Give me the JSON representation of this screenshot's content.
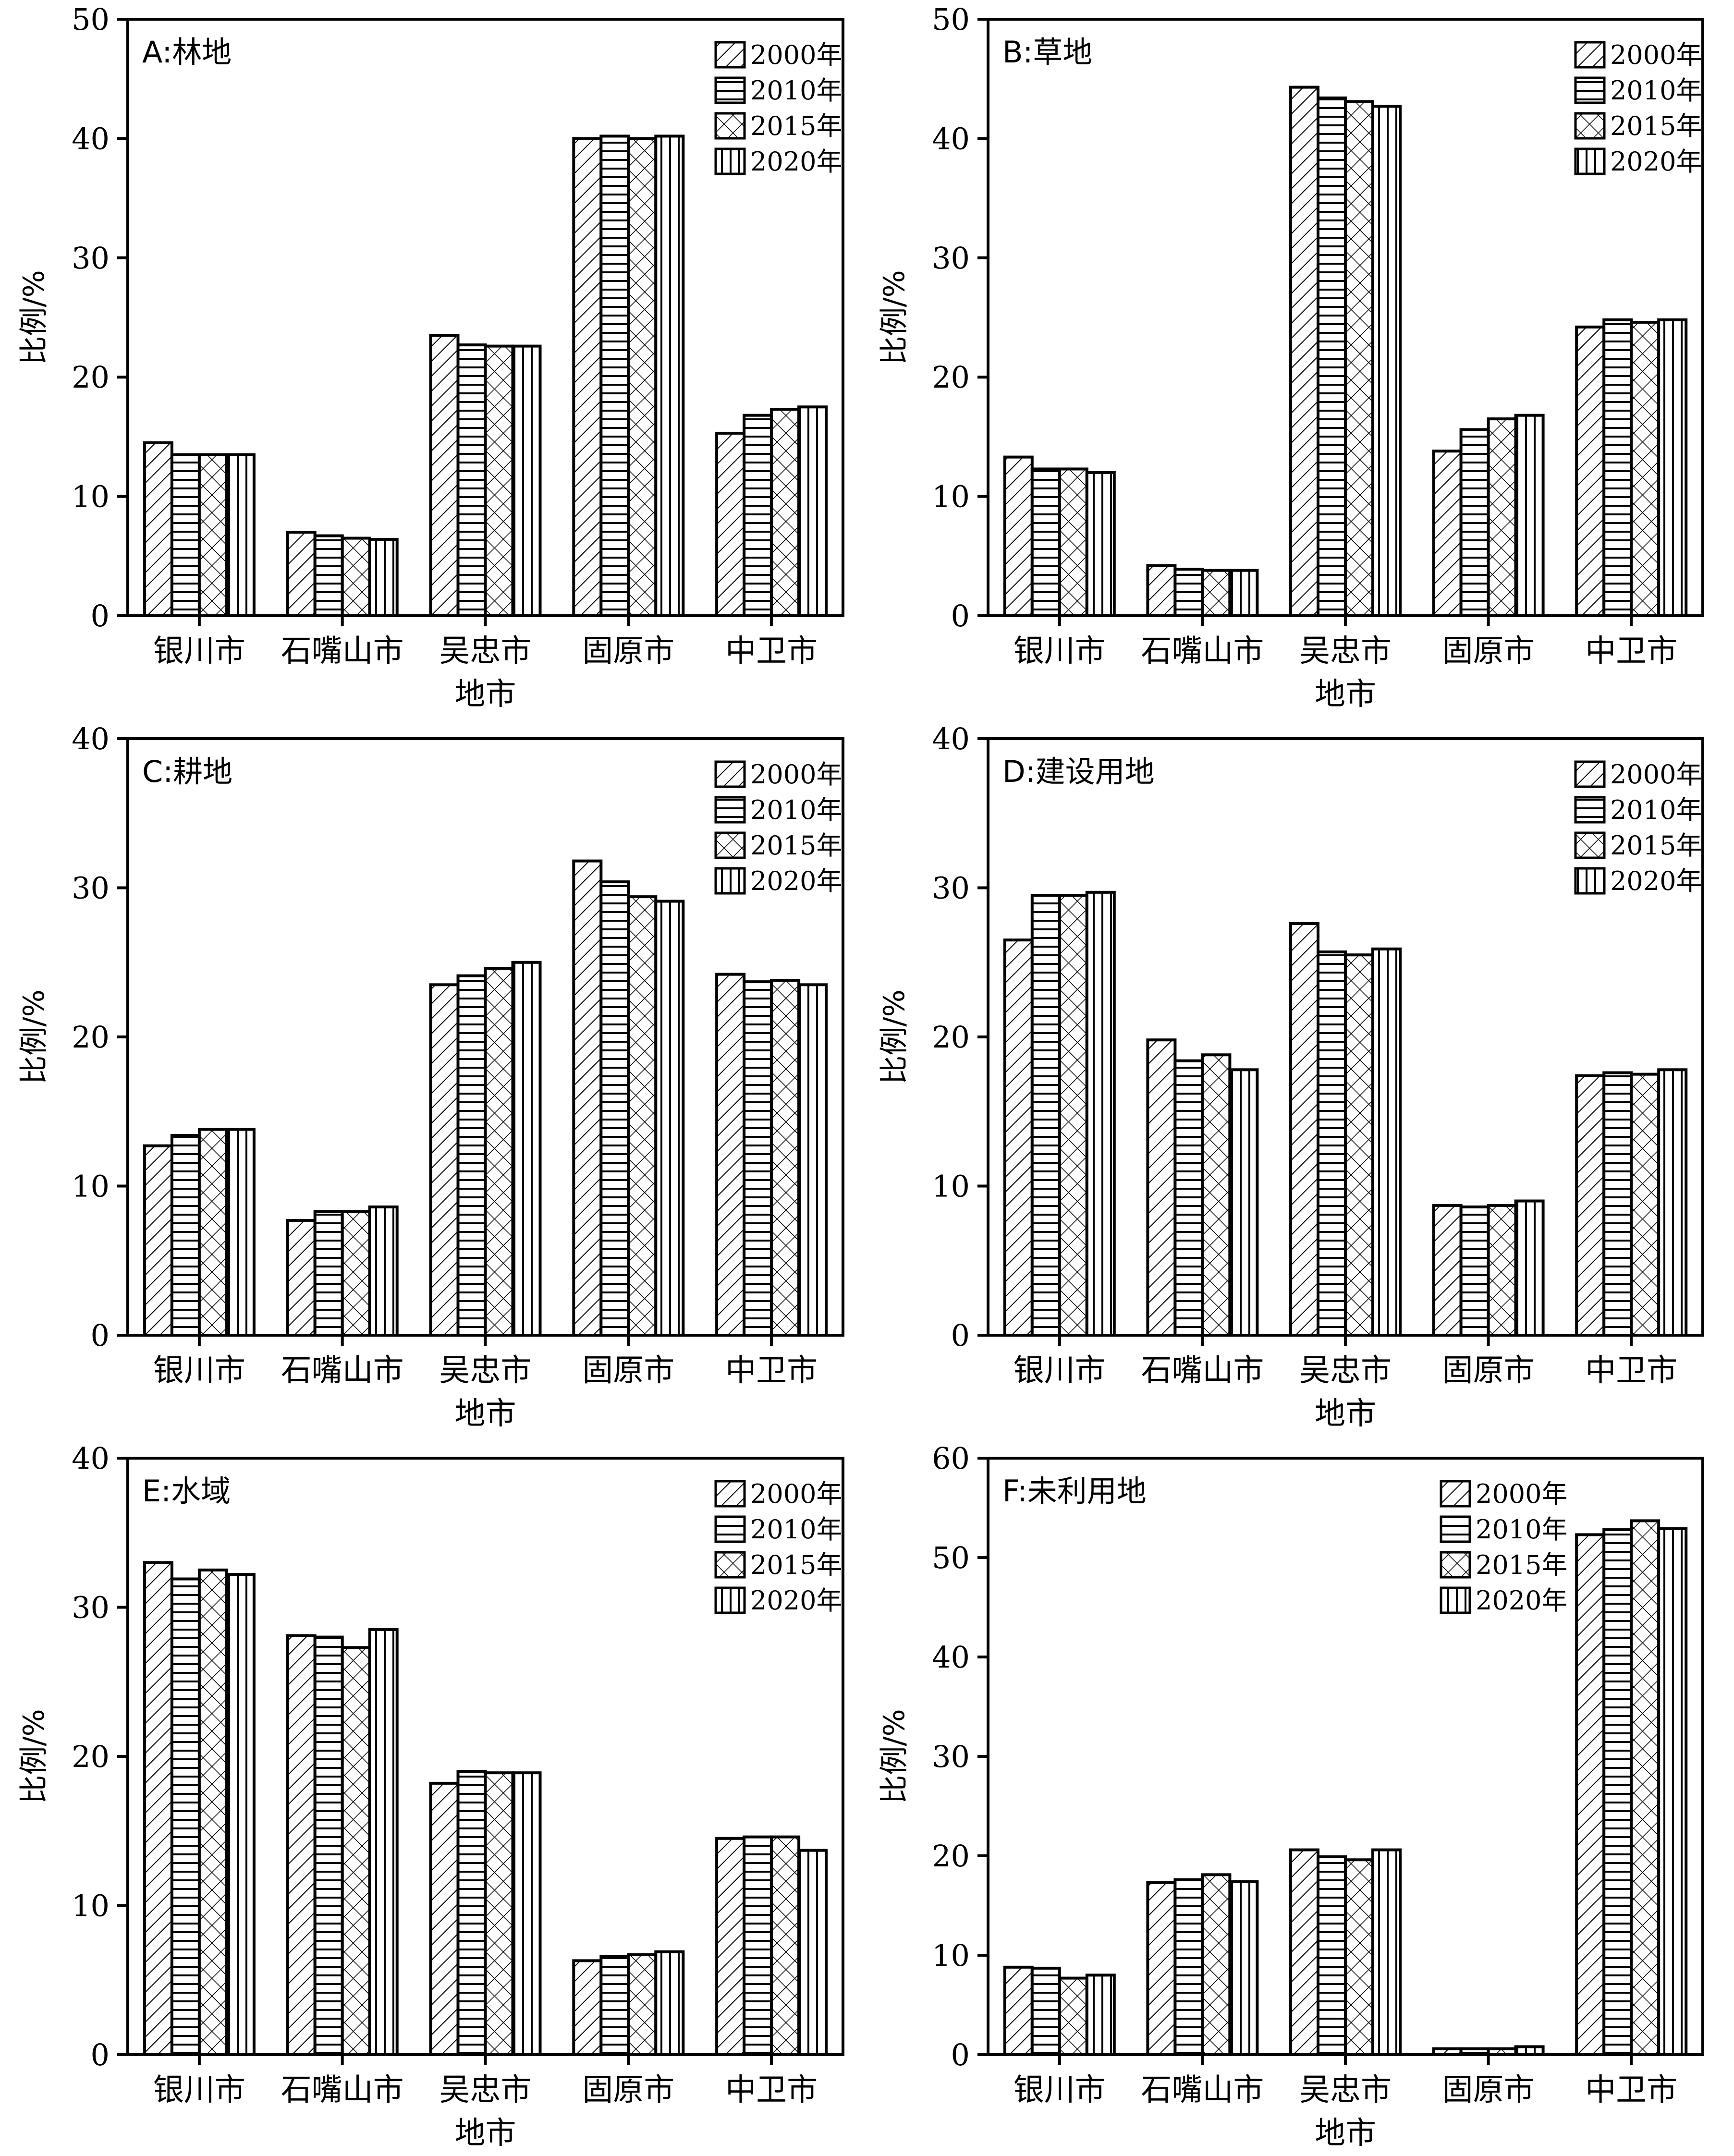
{
  "chart_data": [
    {
      "type": "bar",
      "title": "A:林地",
      "xlabel": "地市",
      "ylabel": "比例/%",
      "ylim": [
        0,
        50
      ],
      "yticks": [
        "0",
        "10",
        "20",
        "30",
        "40",
        "50"
      ],
      "categories": [
        "银川市",
        "石嘴山市",
        "吴忠市",
        "固原市",
        "中卫市"
      ],
      "legend_position": "top-right",
      "series": [
        {
          "name": "2000年",
          "pattern": "diagonal",
          "values": [
            14.5,
            7.0,
            23.5,
            40.0,
            15.3
          ]
        },
        {
          "name": "2010年",
          "pattern": "horizontal",
          "values": [
            13.5,
            6.7,
            22.7,
            40.2,
            16.8
          ]
        },
        {
          "name": "2015年",
          "pattern": "crosshatch",
          "values": [
            13.5,
            6.5,
            22.6,
            40.0,
            17.3
          ]
        },
        {
          "name": "2020年",
          "pattern": "vertical",
          "values": [
            13.5,
            6.4,
            22.6,
            40.2,
            17.5
          ]
        }
      ]
    },
    {
      "type": "bar",
      "title": "B:草地",
      "xlabel": "地市",
      "ylabel": "比例/%",
      "ylim": [
        0,
        50
      ],
      "yticks": [
        "0",
        "10",
        "20",
        "30",
        "40",
        "50"
      ],
      "categories": [
        "银川市",
        "石嘴山市",
        "吴忠市",
        "固原市",
        "中卫市"
      ],
      "legend_position": "top-right",
      "series": [
        {
          "name": "2000年",
          "pattern": "diagonal",
          "values": [
            13.3,
            4.2,
            44.3,
            13.8,
            24.2
          ]
        },
        {
          "name": "2010年",
          "pattern": "horizontal",
          "values": [
            12.3,
            3.9,
            43.4,
            15.6,
            24.8
          ]
        },
        {
          "name": "2015年",
          "pattern": "crosshatch",
          "values": [
            12.3,
            3.8,
            43.1,
            16.5,
            24.6
          ]
        },
        {
          "name": "2020年",
          "pattern": "vertical",
          "values": [
            12.0,
            3.8,
            42.7,
            16.8,
            24.8
          ]
        }
      ]
    },
    {
      "type": "bar",
      "title": "C:耕地",
      "xlabel": "地市",
      "ylabel": "比例/%",
      "ylim": [
        0,
        40
      ],
      "yticks": [
        "0",
        "10",
        "20",
        "30",
        "40"
      ],
      "categories": [
        "银川市",
        "石嘴山市",
        "吴忠市",
        "固原市",
        "中卫市"
      ],
      "legend_position": "top-right",
      "series": [
        {
          "name": "2000年",
          "pattern": "diagonal",
          "values": [
            12.7,
            7.7,
            23.5,
            31.8,
            24.2
          ]
        },
        {
          "name": "2010年",
          "pattern": "horizontal",
          "values": [
            13.4,
            8.3,
            24.1,
            30.4,
            23.7
          ]
        },
        {
          "name": "2015年",
          "pattern": "crosshatch",
          "values": [
            13.8,
            8.3,
            24.6,
            29.4,
            23.8
          ]
        },
        {
          "name": "2020年",
          "pattern": "vertical",
          "values": [
            13.8,
            8.6,
            25.0,
            29.1,
            23.5
          ]
        }
      ]
    },
    {
      "type": "bar",
      "title": "D:建设用地",
      "xlabel": "地市",
      "ylabel": "比例/%",
      "ylim": [
        0,
        40
      ],
      "yticks": [
        "0",
        "10",
        "20",
        "30",
        "40"
      ],
      "categories": [
        "银川市",
        "石嘴山市",
        "吴忠市",
        "固原市",
        "中卫市"
      ],
      "legend_position": "top-right",
      "series": [
        {
          "name": "2000年",
          "pattern": "diagonal",
          "values": [
            26.5,
            19.8,
            27.6,
            8.7,
            17.4
          ]
        },
        {
          "name": "2010年",
          "pattern": "horizontal",
          "values": [
            29.5,
            18.4,
            25.7,
            8.6,
            17.6
          ]
        },
        {
          "name": "2015年",
          "pattern": "crosshatch",
          "values": [
            29.5,
            18.8,
            25.5,
            8.7,
            17.5
          ]
        },
        {
          "name": "2020年",
          "pattern": "vertical",
          "values": [
            29.7,
            17.8,
            25.9,
            9.0,
            17.8
          ]
        }
      ]
    },
    {
      "type": "bar",
      "title": "E:水域",
      "xlabel": "地市",
      "ylabel": "比例/%",
      "ylim": [
        0,
        40
      ],
      "yticks": [
        "0",
        "10",
        "20",
        "30",
        "40"
      ],
      "categories": [
        "银川市",
        "石嘴山市",
        "吴忠市",
        "固原市",
        "中卫市"
      ],
      "legend_position": "top-right",
      "series": [
        {
          "name": "2000年",
          "pattern": "diagonal",
          "values": [
            33.0,
            28.1,
            18.2,
            6.3,
            14.5
          ]
        },
        {
          "name": "2010年",
          "pattern": "horizontal",
          "values": [
            31.9,
            28.0,
            19.0,
            6.6,
            14.6
          ]
        },
        {
          "name": "2015年",
          "pattern": "crosshatch",
          "values": [
            32.5,
            27.3,
            18.9,
            6.7,
            14.6
          ]
        },
        {
          "name": "2020年",
          "pattern": "vertical",
          "values": [
            32.2,
            28.5,
            18.9,
            6.9,
            13.7
          ]
        }
      ]
    },
    {
      "type": "bar",
      "title": "F:未利用地",
      "xlabel": "地市",
      "ylabel": "比例/%",
      "ylim": [
        0,
        60
      ],
      "yticks": [
        "0",
        "10",
        "20",
        "30",
        "40",
        "50",
        "60"
      ],
      "categories": [
        "银川市",
        "石嘴山市",
        "吴忠市",
        "固原市",
        "中卫市"
      ],
      "legend_position": "top-right",
      "series": [
        {
          "name": "2000年",
          "pattern": "diagonal",
          "values": [
            8.8,
            17.3,
            20.6,
            0.6,
            52.3
          ]
        },
        {
          "name": "2010年",
          "pattern": "horizontal",
          "values": [
            8.7,
            17.6,
            19.9,
            0.6,
            52.8
          ]
        },
        {
          "name": "2015年",
          "pattern": "crosshatch",
          "values": [
            7.7,
            18.1,
            19.6,
            0.6,
            53.7
          ]
        },
        {
          "name": "2020年",
          "pattern": "vertical",
          "values": [
            8.0,
            17.4,
            20.6,
            0.8,
            52.9
          ]
        }
      ]
    }
  ]
}
